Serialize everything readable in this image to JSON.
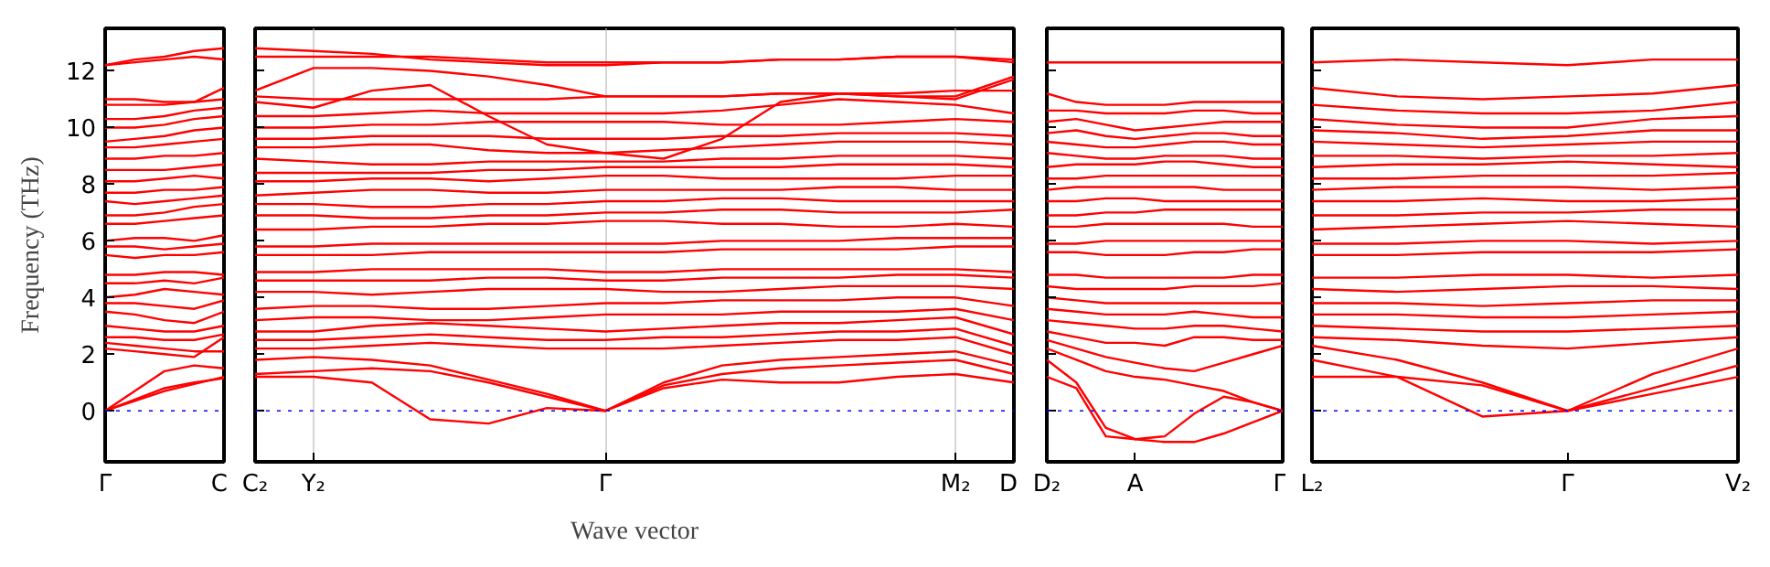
{
  "chart_data": [
    {
      "type": "line",
      "ylabel": "Frequency (THz)",
      "color": "#ff0000",
      "categories": [
        "Γ",
        null,
        null,
        null,
        "C"
      ],
      "ylim": [
        -1.8,
        13.5
      ],
      "yticks": [
        0,
        2,
        4,
        6,
        8,
        10,
        12
      ],
      "ref_lines": [
        {
          "axis": "y",
          "value": 0,
          "color": "#0000ff",
          "line_style": "dotted"
        }
      ],
      "series": [
        {
          "values": [
            0,
            0.4,
            0.8,
            1.0,
            1.15
          ]
        },
        {
          "values": [
            0,
            0.35,
            0.7,
            0.95,
            1.2
          ]
        },
        {
          "values": [
            0,
            0.7,
            1.4,
            1.6,
            1.5
          ]
        },
        {
          "values": [
            2.2,
            2.1,
            2.0,
            1.9,
            2.6
          ]
        },
        {
          "values": [
            2.4,
            2.3,
            2.2,
            2.1,
            2.1
          ]
        },
        {
          "values": [
            2.6,
            2.6,
            2.5,
            2.5,
            2.7
          ]
        },
        {
          "values": [
            3.0,
            2.9,
            2.8,
            2.8,
            3.0
          ]
        },
        {
          "values": [
            3.5,
            3.4,
            3.2,
            3.1,
            3.5
          ]
        },
        {
          "values": [
            3.8,
            3.8,
            3.7,
            3.6,
            3.9
          ]
        },
        {
          "values": [
            4.0,
            4.1,
            4.3,
            4.2,
            4.1
          ]
        },
        {
          "values": [
            4.5,
            4.5,
            4.6,
            4.5,
            4.7
          ]
        },
        {
          "values": [
            4.8,
            4.8,
            4.9,
            4.9,
            4.8
          ]
        },
        {
          "values": [
            5.5,
            5.4,
            5.5,
            5.5,
            5.6
          ]
        },
        {
          "values": [
            5.8,
            5.8,
            5.7,
            5.8,
            5.9
          ]
        },
        {
          "values": [
            6.0,
            6.1,
            6.1,
            6.0,
            6.2
          ]
        },
        {
          "values": [
            6.6,
            6.6,
            6.7,
            6.8,
            6.9
          ]
        },
        {
          "values": [
            6.9,
            6.9,
            7.0,
            7.2,
            7.3
          ]
        },
        {
          "values": [
            7.4,
            7.3,
            7.4,
            7.5,
            7.6
          ]
        },
        {
          "values": [
            7.7,
            7.7,
            7.8,
            7.8,
            7.9
          ]
        },
        {
          "values": [
            8.1,
            8.1,
            8.2,
            8.3,
            8.2
          ]
        },
        {
          "values": [
            8.5,
            8.5,
            8.5,
            8.6,
            8.7
          ]
        },
        {
          "values": [
            8.9,
            8.9,
            9.0,
            9.0,
            9.1
          ]
        },
        {
          "values": [
            9.3,
            9.3,
            9.4,
            9.5,
            9.6
          ]
        },
        {
          "values": [
            9.5,
            9.6,
            9.7,
            9.9,
            10.0
          ]
        },
        {
          "values": [
            10.0,
            10.0,
            10.1,
            10.3,
            10.4
          ]
        },
        {
          "values": [
            10.3,
            10.3,
            10.4,
            10.6,
            10.7
          ]
        },
        {
          "values": [
            10.8,
            10.8,
            10.8,
            10.9,
            11.0
          ]
        },
        {
          "values": [
            11.0,
            11.0,
            10.9,
            10.9,
            11.4
          ]
        },
        {
          "values": [
            12.2,
            12.3,
            12.4,
            12.5,
            12.4
          ]
        },
        {
          "values": [
            12.2,
            12.4,
            12.5,
            12.7,
            12.8
          ]
        }
      ]
    },
    {
      "type": "line",
      "xlabel": "Wave vector",
      "color": "#ff0000",
      "categories": [
        "C₂",
        "Y₂",
        null,
        null,
        null,
        null,
        "Γ",
        null,
        null,
        null,
        null,
        null,
        "M₂",
        "D"
      ],
      "ylim": [
        -1.8,
        13.5
      ],
      "yticks": [
        0,
        2,
        4,
        6,
        8,
        10,
        12
      ],
      "tick_labels": "x",
      "grid": "x",
      "ref_lines": [
        {
          "axis": "y",
          "value": 0,
          "color": "#0000ff",
          "line_style": "dotted"
        }
      ],
      "series": [
        {
          "values": [
            1.2,
            1.2,
            1.0,
            -0.3,
            -0.45,
            0.1,
            0,
            0.8,
            1.1,
            1.0,
            1.0,
            1.2,
            1.3,
            1.0
          ]
        },
        {
          "values": [
            1.3,
            1.4,
            1.5,
            1.4,
            1.0,
            0.5,
            0,
            0.9,
            1.3,
            1.5,
            1.6,
            1.7,
            1.8,
            1.3
          ]
        },
        {
          "values": [
            1.8,
            1.9,
            1.8,
            1.6,
            1.1,
            0.6,
            0,
            1.0,
            1.6,
            1.8,
            1.9,
            2.0,
            2.1,
            1.6
          ]
        },
        {
          "values": [
            2.2,
            2.2,
            2.3,
            2.4,
            2.3,
            2.2,
            2.2,
            2.2,
            2.3,
            2.4,
            2.5,
            2.5,
            2.6,
            2.0
          ]
        },
        {
          "values": [
            2.5,
            2.5,
            2.6,
            2.7,
            2.6,
            2.5,
            2.5,
            2.6,
            2.6,
            2.7,
            2.8,
            2.8,
            2.9,
            2.3
          ]
        },
        {
          "values": [
            2.8,
            2.8,
            3.0,
            3.1,
            3.0,
            2.9,
            2.8,
            2.9,
            3.0,
            3.1,
            3.1,
            3.2,
            3.3,
            2.7
          ]
        },
        {
          "values": [
            3.2,
            3.3,
            3.3,
            3.2,
            3.2,
            3.3,
            3.4,
            3.4,
            3.4,
            3.5,
            3.5,
            3.5,
            3.6,
            3.2
          ]
        },
        {
          "values": [
            3.6,
            3.7,
            3.7,
            3.6,
            3.6,
            3.7,
            3.8,
            3.8,
            3.9,
            3.9,
            3.9,
            4.0,
            4.0,
            3.7
          ]
        },
        {
          "values": [
            4.2,
            4.2,
            4.1,
            4.2,
            4.3,
            4.3,
            4.3,
            4.2,
            4.2,
            4.3,
            4.4,
            4.4,
            4.4,
            4.3
          ]
        },
        {
          "values": [
            4.6,
            4.6,
            4.6,
            4.6,
            4.7,
            4.7,
            4.6,
            4.6,
            4.7,
            4.7,
            4.7,
            4.8,
            4.8,
            4.7
          ]
        },
        {
          "values": [
            4.9,
            4.9,
            5.0,
            5.0,
            5.0,
            5.0,
            4.9,
            4.9,
            5.0,
            5.0,
            5.0,
            5.0,
            5.0,
            4.9
          ]
        },
        {
          "values": [
            5.5,
            5.5,
            5.5,
            5.6,
            5.6,
            5.6,
            5.6,
            5.6,
            5.7,
            5.7,
            5.7,
            5.7,
            5.8,
            5.8
          ]
        },
        {
          "values": [
            5.8,
            5.8,
            5.9,
            5.9,
            5.9,
            5.9,
            5.9,
            5.9,
            6.0,
            6.0,
            6.0,
            6.1,
            6.1,
            6.1
          ]
        },
        {
          "values": [
            6.4,
            6.4,
            6.5,
            6.5,
            6.6,
            6.6,
            6.7,
            6.7,
            6.6,
            6.6,
            6.5,
            6.5,
            6.6,
            6.5
          ]
        },
        {
          "values": [
            6.9,
            6.9,
            6.8,
            6.8,
            6.9,
            6.9,
            7.0,
            7.0,
            7.1,
            7.1,
            7.0,
            7.0,
            7.0,
            7.1
          ]
        },
        {
          "values": [
            7.3,
            7.3,
            7.2,
            7.2,
            7.3,
            7.3,
            7.4,
            7.4,
            7.5,
            7.5,
            7.4,
            7.4,
            7.4,
            7.4
          ]
        },
        {
          "values": [
            7.6,
            7.7,
            7.8,
            7.8,
            7.7,
            7.7,
            7.8,
            7.8,
            7.8,
            7.8,
            7.9,
            7.9,
            7.8,
            7.8
          ]
        },
        {
          "values": [
            8.1,
            8.1,
            8.2,
            8.2,
            8.1,
            8.2,
            8.3,
            8.3,
            8.2,
            8.2,
            8.2,
            8.2,
            8.3,
            8.3
          ]
        },
        {
          "values": [
            8.4,
            8.4,
            8.4,
            8.4,
            8.5,
            8.5,
            8.6,
            8.6,
            8.6,
            8.6,
            8.7,
            8.7,
            8.7,
            8.6
          ]
        },
        {
          "values": [
            8.9,
            8.8,
            8.7,
            8.7,
            8.8,
            8.8,
            8.8,
            8.8,
            8.9,
            8.9,
            9.0,
            9.0,
            9.0,
            8.9
          ]
        },
        {
          "values": [
            9.3,
            9.3,
            9.4,
            9.4,
            9.2,
            9.1,
            9.1,
            9.2,
            9.3,
            9.4,
            9.5,
            9.5,
            9.5,
            9.4
          ]
        },
        {
          "values": [
            9.6,
            9.6,
            9.7,
            9.7,
            9.7,
            9.6,
            9.6,
            9.6,
            9.7,
            9.7,
            9.8,
            9.8,
            9.8,
            9.7
          ]
        },
        {
          "values": [
            10.0,
            10.0,
            10.1,
            10.1,
            10.2,
            10.2,
            10.2,
            10.2,
            10.1,
            10.1,
            10.1,
            10.2,
            10.3,
            10.2
          ]
        },
        {
          "values": [
            10.4,
            10.4,
            10.5,
            10.6,
            10.5,
            10.5,
            10.5,
            10.5,
            10.6,
            10.8,
            11.0,
            10.9,
            10.8,
            10.5
          ]
        },
        {
          "values": [
            10.9,
            10.7,
            11.3,
            11.5,
            10.4,
            9.4,
            9.1,
            8.9,
            9.6,
            10.9,
            11.2,
            11.1,
            11.0,
            11.7
          ]
        },
        {
          "values": [
            11.1,
            11.0,
            11.0,
            11.0,
            11.0,
            11.0,
            11.1,
            11.1,
            11.1,
            11.2,
            11.2,
            11.2,
            11.3,
            11.3
          ]
        },
        {
          "values": [
            11.3,
            12.1,
            12.1,
            12.0,
            11.8,
            11.5,
            11.1,
            11.1,
            11.1,
            11.2,
            11.2,
            11.1,
            11.1,
            11.8
          ]
        },
        {
          "values": [
            12.5,
            12.5,
            12.5,
            12.5,
            12.4,
            12.3,
            12.3,
            12.3,
            12.3,
            12.4,
            12.4,
            12.5,
            12.5,
            12.4
          ]
        },
        {
          "values": [
            12.8,
            12.7,
            12.6,
            12.4,
            12.3,
            12.2,
            12.2,
            12.3,
            12.3,
            12.4,
            12.4,
            12.5,
            12.5,
            12.3
          ]
        }
      ]
    },
    {
      "type": "line",
      "color": "#ff0000",
      "categories": [
        "D₂",
        null,
        null,
        "A",
        null,
        null,
        null,
        null,
        "Γ"
      ],
      "ylim": [
        -1.8,
        13.5
      ],
      "yticks": [
        0,
        2,
        4,
        6,
        8,
        10,
        12
      ],
      "tick_labels": "x",
      "ref_lines": [
        {
          "axis": "y",
          "value": 0,
          "color": "#0000ff",
          "line_style": "dotted"
        }
      ],
      "series": [
        {
          "values": [
            1.8,
            1.0,
            -0.6,
            -1.0,
            -1.1,
            -1.1,
            -0.8,
            -0.4,
            0
          ]
        },
        {
          "values": [
            1.2,
            0.8,
            -0.9,
            -1.0,
            -0.9,
            -0.1,
            0.5,
            0.3,
            0
          ]
        },
        {
          "values": [
            2.2,
            1.8,
            1.4,
            1.2,
            1.1,
            0.9,
            0.7,
            0.3,
            0
          ]
        },
        {
          "values": [
            2.5,
            2.2,
            1.9,
            1.7,
            1.5,
            1.4,
            1.7,
            2.0,
            2.3
          ]
        },
        {
          "values": [
            2.8,
            2.6,
            2.4,
            2.4,
            2.3,
            2.6,
            2.6,
            2.5,
            2.5
          ]
        },
        {
          "values": [
            3.2,
            3.1,
            3.0,
            2.9,
            2.9,
            3.0,
            3.0,
            2.9,
            2.8
          ]
        },
        {
          "values": [
            3.6,
            3.5,
            3.4,
            3.4,
            3.4,
            3.5,
            3.4,
            3.3,
            3.3
          ]
        },
        {
          "values": [
            4.0,
            3.9,
            3.8,
            3.8,
            3.8,
            3.8,
            3.8,
            3.8,
            3.8
          ]
        },
        {
          "values": [
            4.4,
            4.3,
            4.3,
            4.3,
            4.3,
            4.4,
            4.4,
            4.4,
            4.5
          ]
        },
        {
          "values": [
            4.8,
            4.8,
            4.7,
            4.7,
            4.7,
            4.7,
            4.7,
            4.8,
            4.8
          ]
        },
        {
          "values": [
            5.6,
            5.6,
            5.5,
            5.5,
            5.5,
            5.6,
            5.6,
            5.7,
            5.7
          ]
        },
        {
          "values": [
            5.9,
            5.9,
            6.0,
            6.0,
            6.0,
            6.0,
            6.0,
            6.0,
            6.0
          ]
        },
        {
          "values": [
            6.5,
            6.5,
            6.6,
            6.6,
            6.6,
            6.6,
            6.6,
            6.5,
            6.5
          ]
        },
        {
          "values": [
            6.9,
            6.9,
            7.0,
            7.0,
            7.1,
            7.1,
            7.1,
            7.1,
            7.1
          ]
        },
        {
          "values": [
            7.4,
            7.4,
            7.5,
            7.5,
            7.4,
            7.4,
            7.4,
            7.4,
            7.4
          ]
        },
        {
          "values": [
            7.8,
            7.9,
            7.9,
            7.9,
            7.9,
            7.9,
            7.8,
            7.8,
            7.8
          ]
        },
        {
          "values": [
            8.2,
            8.2,
            8.3,
            8.3,
            8.3,
            8.3,
            8.3,
            8.3,
            8.3
          ]
        },
        {
          "values": [
            8.6,
            8.7,
            8.7,
            8.7,
            8.8,
            8.8,
            8.7,
            8.6,
            8.6
          ]
        },
        {
          "values": [
            9.1,
            9.0,
            8.9,
            8.9,
            9.0,
            9.0,
            9.0,
            8.9,
            8.9
          ]
        },
        {
          "values": [
            9.5,
            9.4,
            9.3,
            9.3,
            9.4,
            9.5,
            9.5,
            9.4,
            9.4
          ]
        },
        {
          "values": [
            9.8,
            9.9,
            9.7,
            9.6,
            9.7,
            9.8,
            9.8,
            9.7,
            9.7
          ]
        },
        {
          "values": [
            10.2,
            10.3,
            10.1,
            9.9,
            10.0,
            10.1,
            10.2,
            10.2,
            10.2
          ]
        },
        {
          "values": [
            10.6,
            10.6,
            10.5,
            10.5,
            10.5,
            10.6,
            10.6,
            10.5,
            10.5
          ]
        },
        {
          "values": [
            11.2,
            10.9,
            10.8,
            10.8,
            10.8,
            10.9,
            10.9,
            10.9,
            10.9
          ]
        },
        {
          "values": [
            12.3,
            12.3,
            12.3,
            12.3,
            12.3,
            12.3,
            12.3,
            12.3,
            12.3
          ]
        }
      ]
    },
    {
      "type": "line",
      "color": "#ff0000",
      "categories": [
        "L₂",
        null,
        null,
        "Γ",
        null,
        "V₂"
      ],
      "ylim": [
        -1.8,
        13.5
      ],
      "yticks": [
        0,
        2,
        4,
        6,
        8,
        10,
        12
      ],
      "tick_labels": "x",
      "ref_lines": [
        {
          "axis": "y",
          "value": 0,
          "color": "#0000ff",
          "line_style": "dotted"
        }
      ],
      "series": [
        {
          "values": [
            1.8,
            1.2,
            -0.2,
            0,
            0.6,
            1.2
          ]
        },
        {
          "values": [
            1.2,
            1.2,
            0.9,
            0,
            0.8,
            1.6
          ]
        },
        {
          "values": [
            2.3,
            1.8,
            1.0,
            0,
            1.3,
            2.2
          ]
        },
        {
          "values": [
            2.6,
            2.5,
            2.3,
            2.2,
            2.4,
            2.6
          ]
        },
        {
          "values": [
            3.0,
            2.9,
            2.8,
            2.8,
            2.9,
            3.0
          ]
        },
        {
          "values": [
            3.4,
            3.4,
            3.3,
            3.3,
            3.4,
            3.5
          ]
        },
        {
          "values": [
            3.8,
            3.8,
            3.7,
            3.8,
            3.9,
            3.9
          ]
        },
        {
          "values": [
            4.3,
            4.2,
            4.3,
            4.4,
            4.4,
            4.3
          ]
        },
        {
          "values": [
            4.7,
            4.7,
            4.8,
            4.8,
            4.7,
            4.8
          ]
        },
        {
          "values": [
            5.5,
            5.5,
            5.6,
            5.6,
            5.6,
            5.7
          ]
        },
        {
          "values": [
            5.9,
            5.9,
            6.0,
            6.0,
            5.9,
            6.0
          ]
        },
        {
          "values": [
            6.4,
            6.5,
            6.6,
            6.7,
            6.6,
            6.5
          ]
        },
        {
          "values": [
            6.9,
            6.9,
            7.0,
            7.0,
            7.1,
            7.1
          ]
        },
        {
          "values": [
            7.4,
            7.4,
            7.5,
            7.4,
            7.4,
            7.5
          ]
        },
        {
          "values": [
            7.8,
            7.9,
            7.9,
            7.9,
            7.8,
            7.9
          ]
        },
        {
          "values": [
            8.2,
            8.2,
            8.3,
            8.3,
            8.3,
            8.4
          ]
        },
        {
          "values": [
            8.6,
            8.7,
            8.7,
            8.8,
            8.7,
            8.6
          ]
        },
        {
          "values": [
            9.0,
            9.0,
            8.9,
            9.0,
            9.0,
            9.1
          ]
        },
        {
          "values": [
            9.5,
            9.4,
            9.3,
            9.4,
            9.5,
            9.5
          ]
        },
        {
          "values": [
            9.9,
            9.8,
            9.6,
            9.7,
            9.9,
            9.9
          ]
        },
        {
          "values": [
            10.3,
            10.1,
            10.0,
            10.0,
            10.3,
            10.4
          ]
        },
        {
          "values": [
            10.8,
            10.6,
            10.5,
            10.5,
            10.6,
            10.9
          ]
        },
        {
          "values": [
            11.4,
            11.1,
            11.0,
            11.1,
            11.2,
            11.5
          ]
        },
        {
          "values": [
            12.3,
            12.4,
            12.3,
            12.2,
            12.4,
            12.4
          ]
        }
      ]
    }
  ]
}
